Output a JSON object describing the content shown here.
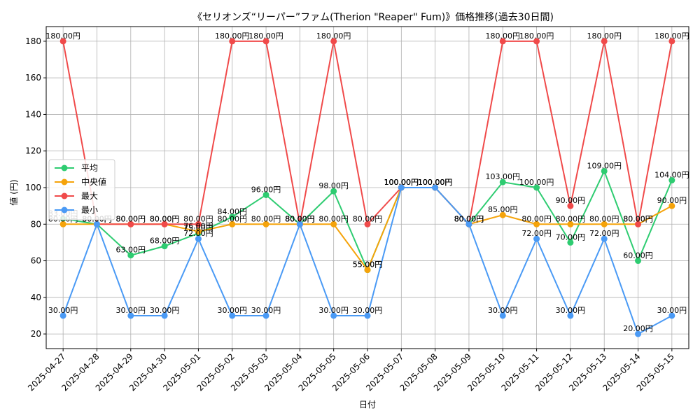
{
  "chart_data": {
    "type": "line",
    "title": "《セリオンズ“リーパー”ファム(Therion \"Reaper\" Fum)》価格推移(過去30日間)",
    "xlabel": "日付",
    "ylabel": "値 (円)",
    "ylim": [
      12,
      188
    ],
    "yticks": [
      20,
      40,
      60,
      80,
      100,
      120,
      140,
      160,
      180
    ],
    "grid": true,
    "legend_position": "center-left",
    "value_suffix": "円",
    "x": [
      "2025-04-27",
      "2025-04-28",
      "2025-04-29",
      "2025-04-30",
      "2025-05-01",
      "2025-05-02",
      "2025-05-03",
      "2025-05-04",
      "2025-05-05",
      "2025-05-06",
      "2025-05-07",
      "2025-05-08",
      "2025-05-09",
      "2025-05-10",
      "2025-05-11",
      "2025-05-12",
      "2025-05-13",
      "2025-05-14",
      "2025-05-15"
    ],
    "series": [
      {
        "name": "平均",
        "color": "#2ecc71",
        "values": [
          83,
          80,
          63,
          68,
          75,
          84,
          96,
          80,
          98,
          55,
          100,
          100,
          80,
          103,
          100,
          70,
          109,
          60,
          104
        ]
      },
      {
        "name": "中央値",
        "color": "#f5a30a",
        "values": [
          80,
          80,
          80,
          80,
          76,
          80,
          80,
          80,
          80,
          55,
          100,
          100,
          80,
          85,
          80,
          80,
          80,
          80,
          90
        ]
      },
      {
        "name": "最大",
        "color": "#f04a4a",
        "values": [
          180,
          80,
          80,
          80,
          80,
          180,
          180,
          80,
          180,
          80,
          100,
          100,
          80,
          180,
          180,
          90,
          180,
          80,
          180
        ]
      },
      {
        "name": "最小",
        "color": "#4a9af5",
        "values": [
          30,
          80,
          30,
          30,
          72,
          30,
          30,
          80,
          30,
          30,
          100,
          100,
          80,
          30,
          72,
          30,
          72,
          20,
          30
        ]
      }
    ]
  }
}
